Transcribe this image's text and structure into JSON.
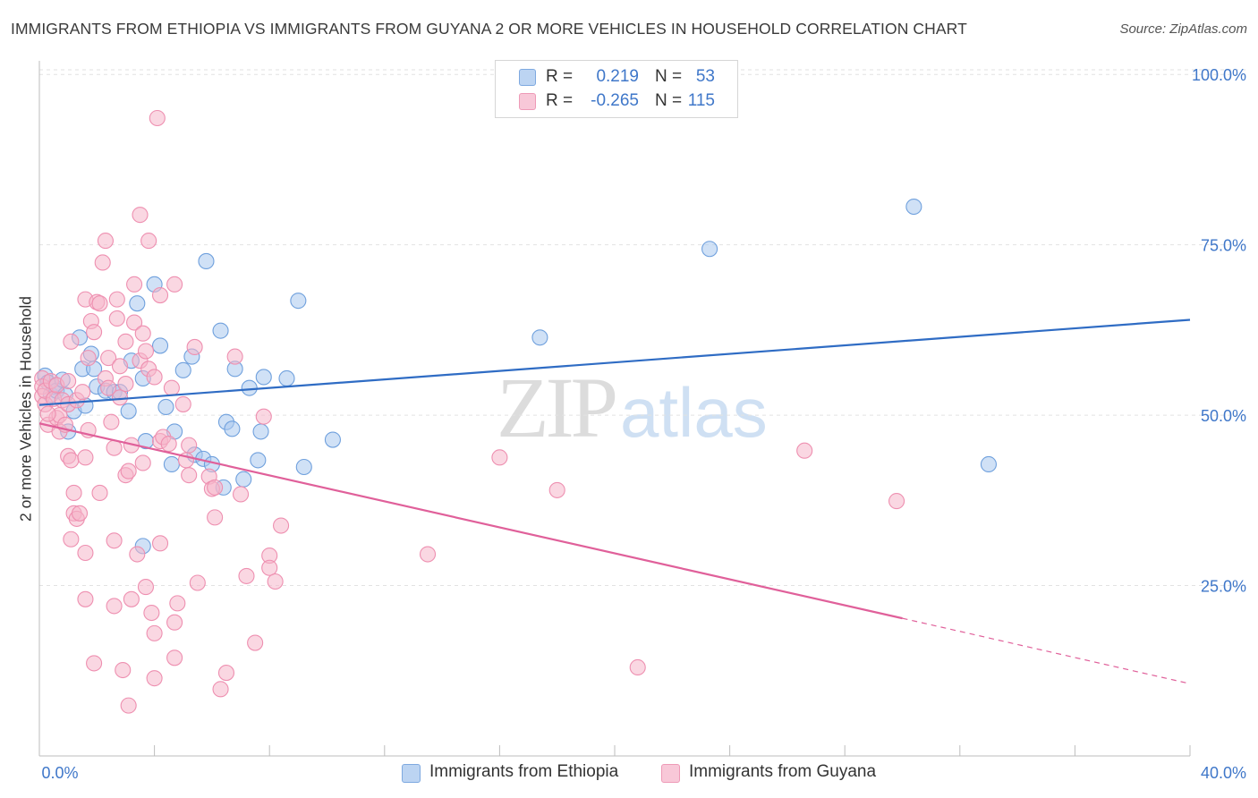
{
  "title": "IMMIGRANTS FROM ETHIOPIA VS IMMIGRANTS FROM GUYANA 2 OR MORE VEHICLES IN HOUSEHOLD CORRELATION CHART",
  "source": "Source: ZipAtlas.com",
  "watermark": {
    "zip": "ZIP",
    "atlas": "atlas"
  },
  "legend": {
    "rows": [
      {
        "r_label": "R =",
        "r_value": "0.219",
        "n_label": "N =",
        "n_value": "53",
        "color": "#a9c8ee"
      },
      {
        "r_label": "R =",
        "r_value": "-0.265",
        "n_label": "N =",
        "n_value": "115",
        "color": "#f5b6cb"
      }
    ]
  },
  "bottom_legend": [
    {
      "label": "Immigrants from Ethiopia",
      "color": "#a9c8ee"
    },
    {
      "label": "Immigrants from Guyana",
      "color": "#f5b6cb"
    }
  ],
  "chart_data": {
    "type": "scatter",
    "title": "IMMIGRANTS FROM ETHIOPIA VS IMMIGRANTS FROM GUYANA 2 OR MORE VEHICLES IN HOUSEHOLD CORRELATION CHART",
    "xlabel": "",
    "ylabel": "2 or more Vehicles in Household",
    "xlim": [
      0,
      40
    ],
    "ylim": [
      0,
      102
    ],
    "x_tick_labels": [
      "0.0%",
      "40.0%"
    ],
    "y_tick_labels": [
      "25.0%",
      "50.0%",
      "75.0%",
      "100.0%"
    ],
    "y_ticks": [
      25,
      50,
      75,
      100
    ],
    "grid": true,
    "legend_position": "top-center",
    "series": [
      {
        "name": "Immigrants from Ethiopia",
        "color": "#6fa0dd",
        "fill": "#a9c8ee",
        "trend": {
          "x": [
            0,
            40
          ],
          "y": [
            51.5,
            64.0
          ],
          "color": "#2f6cc4"
        },
        "points": [
          [
            0.2,
            55.8
          ],
          [
            0.3,
            54.8
          ],
          [
            0.4,
            53.0
          ],
          [
            0.5,
            54.2
          ],
          [
            0.6,
            53.6
          ],
          [
            0.8,
            55.2
          ],
          [
            0.9,
            53.0
          ],
          [
            1.0,
            47.6
          ],
          [
            1.2,
            50.6
          ],
          [
            1.4,
            61.4
          ],
          [
            1.5,
            56.8
          ],
          [
            1.6,
            51.4
          ],
          [
            1.8,
            59.0
          ],
          [
            1.9,
            56.8
          ],
          [
            2.0,
            54.2
          ],
          [
            2.3,
            53.6
          ],
          [
            2.6,
            53.4
          ],
          [
            2.8,
            53.4
          ],
          [
            3.1,
            50.6
          ],
          [
            3.2,
            58.0
          ],
          [
            3.4,
            66.4
          ],
          [
            3.6,
            55.4
          ],
          [
            3.7,
            46.2
          ],
          [
            4.0,
            69.2
          ],
          [
            4.2,
            60.2
          ],
          [
            4.4,
            51.2
          ],
          [
            4.6,
            42.8
          ],
          [
            4.7,
            47.6
          ],
          [
            5.0,
            56.6
          ],
          [
            5.3,
            58.6
          ],
          [
            5.4,
            44.2
          ],
          [
            5.7,
            43.6
          ],
          [
            5.8,
            72.6
          ],
          [
            6.0,
            42.8
          ],
          [
            6.4,
            39.4
          ],
          [
            6.3,
            62.4
          ],
          [
            6.5,
            49.0
          ],
          [
            6.7,
            48.0
          ],
          [
            6.8,
            56.8
          ],
          [
            7.1,
            40.6
          ],
          [
            7.3,
            54.0
          ],
          [
            7.6,
            43.4
          ],
          [
            7.7,
            47.6
          ],
          [
            7.8,
            55.6
          ],
          [
            8.6,
            55.4
          ],
          [
            9.0,
            66.8
          ],
          [
            9.2,
            42.4
          ],
          [
            10.2,
            46.4
          ],
          [
            3.6,
            30.8
          ],
          [
            17.4,
            61.4
          ],
          [
            23.3,
            74.4
          ],
          [
            30.4,
            80.6
          ],
          [
            33.0,
            42.8
          ]
        ]
      },
      {
        "name": "Immigrants from Guyana",
        "color": "#ee8fb0",
        "fill": "#f5b6cb",
        "trend": {
          "x": [
            0,
            30.0
          ],
          "y": [
            48.8,
            20.2
          ],
          "dash_to": [
            40,
            10.6
          ],
          "color": "#e0609a"
        },
        "points": [
          [
            0.1,
            55.4
          ],
          [
            0.1,
            54.2
          ],
          [
            0.1,
            52.8
          ],
          [
            0.2,
            51.6
          ],
          [
            0.2,
            53.6
          ],
          [
            0.3,
            48.6
          ],
          [
            0.4,
            55.0
          ],
          [
            0.5,
            52.4
          ],
          [
            0.6,
            49.6
          ],
          [
            0.6,
            54.4
          ],
          [
            0.7,
            50.0
          ],
          [
            0.7,
            47.6
          ],
          [
            0.8,
            52.2
          ],
          [
            0.9,
            48.6
          ],
          [
            1.0,
            55.0
          ],
          [
            1.0,
            51.6
          ],
          [
            1.0,
            44.0
          ],
          [
            1.1,
            60.8
          ],
          [
            1.1,
            43.4
          ],
          [
            1.1,
            31.8
          ],
          [
            1.2,
            38.6
          ],
          [
            1.2,
            35.6
          ],
          [
            1.3,
            52.2
          ],
          [
            1.3,
            34.8
          ],
          [
            1.4,
            35.6
          ],
          [
            1.5,
            53.4
          ],
          [
            1.6,
            67.0
          ],
          [
            1.6,
            43.8
          ],
          [
            1.6,
            29.8
          ],
          [
            1.6,
            23.0
          ],
          [
            1.7,
            58.4
          ],
          [
            1.7,
            47.8
          ],
          [
            1.8,
            63.8
          ],
          [
            1.9,
            62.2
          ],
          [
            1.9,
            13.6
          ],
          [
            2.0,
            66.6
          ],
          [
            2.1,
            66.4
          ],
          [
            2.1,
            38.6
          ],
          [
            2.2,
            72.4
          ],
          [
            2.3,
            75.6
          ],
          [
            2.3,
            55.4
          ],
          [
            2.4,
            58.4
          ],
          [
            2.4,
            54.0
          ],
          [
            2.5,
            49.0
          ],
          [
            2.6,
            45.2
          ],
          [
            2.6,
            31.6
          ],
          [
            2.6,
            22.0
          ],
          [
            2.7,
            67.0
          ],
          [
            2.7,
            64.2
          ],
          [
            2.8,
            57.2
          ],
          [
            2.8,
            52.6
          ],
          [
            2.9,
            12.6
          ],
          [
            3.0,
            60.8
          ],
          [
            3.0,
            54.6
          ],
          [
            3.0,
            41.2
          ],
          [
            3.1,
            41.8
          ],
          [
            3.1,
            7.4
          ],
          [
            3.2,
            45.6
          ],
          [
            3.2,
            23.0
          ],
          [
            3.3,
            69.2
          ],
          [
            3.3,
            63.6
          ],
          [
            3.4,
            29.6
          ],
          [
            3.5,
            79.4
          ],
          [
            3.5,
            58.0
          ],
          [
            3.6,
            62.0
          ],
          [
            3.6,
            43.0
          ],
          [
            3.7,
            59.4
          ],
          [
            3.7,
            24.8
          ],
          [
            3.8,
            75.6
          ],
          [
            3.8,
            56.8
          ],
          [
            3.9,
            21.0
          ],
          [
            4.0,
            55.6
          ],
          [
            4.0,
            18.0
          ],
          [
            4.0,
            11.4
          ],
          [
            4.1,
            93.6
          ],
          [
            4.2,
            67.6
          ],
          [
            4.2,
            46.2
          ],
          [
            4.2,
            31.2
          ],
          [
            4.3,
            46.8
          ],
          [
            4.5,
            45.8
          ],
          [
            4.6,
            54.0
          ],
          [
            4.7,
            69.2
          ],
          [
            4.7,
            19.6
          ],
          [
            4.7,
            14.4
          ],
          [
            4.8,
            22.4
          ],
          [
            5.0,
            51.6
          ],
          [
            5.1,
            43.4
          ],
          [
            5.2,
            45.6
          ],
          [
            5.2,
            41.2
          ],
          [
            5.4,
            60.0
          ],
          [
            5.5,
            25.4
          ],
          [
            5.9,
            41.0
          ],
          [
            6.0,
            39.2
          ],
          [
            6.1,
            39.4
          ],
          [
            6.1,
            35.0
          ],
          [
            6.3,
            9.8
          ],
          [
            6.5,
            12.2
          ],
          [
            6.8,
            58.6
          ],
          [
            7.0,
            38.4
          ],
          [
            7.2,
            26.4
          ],
          [
            7.5,
            16.6
          ],
          [
            7.8,
            49.8
          ],
          [
            8.0,
            29.4
          ],
          [
            8.0,
            27.6
          ],
          [
            8.2,
            25.6
          ],
          [
            8.4,
            33.8
          ],
          [
            13.5,
            29.6
          ],
          [
            16.0,
            43.8
          ],
          [
            18.0,
            39.0
          ],
          [
            20.8,
            13.0
          ],
          [
            26.6,
            44.8
          ],
          [
            29.8,
            37.4
          ],
          [
            0.3,
            50.2
          ]
        ]
      }
    ]
  }
}
